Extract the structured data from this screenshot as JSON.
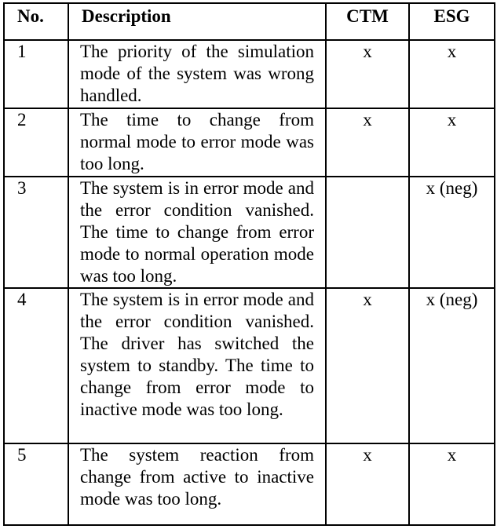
{
  "table": {
    "headers": {
      "no": "No.",
      "description": "Description",
      "ctm": "CTM",
      "esg": "ESG"
    },
    "rows": [
      {
        "no": "1",
        "description": "The priority of the simulation mode of the system was wrong handled.",
        "ctm": "x",
        "esg": "x"
      },
      {
        "no": "2",
        "description": "The time to change from normal mode to error mode was too long.",
        "ctm": "x",
        "esg": "x"
      },
      {
        "no": "3",
        "description": "The system is in error mode and the error condition vanished. The time to change from error mode to normal operation mode was too long.",
        "ctm": "",
        "esg": "x (neg)"
      },
      {
        "no": "4",
        "description": "The system is in error mode and the error condition vanished. The driver has switched the system to standby. The time to change from error mode to inactive mode was too long.",
        "ctm": "x",
        "esg": "x (neg)"
      },
      {
        "no": "5",
        "description": "The system reaction from change from active to inactive mode was too long.",
        "ctm": "x",
        "esg": "x"
      }
    ]
  }
}
